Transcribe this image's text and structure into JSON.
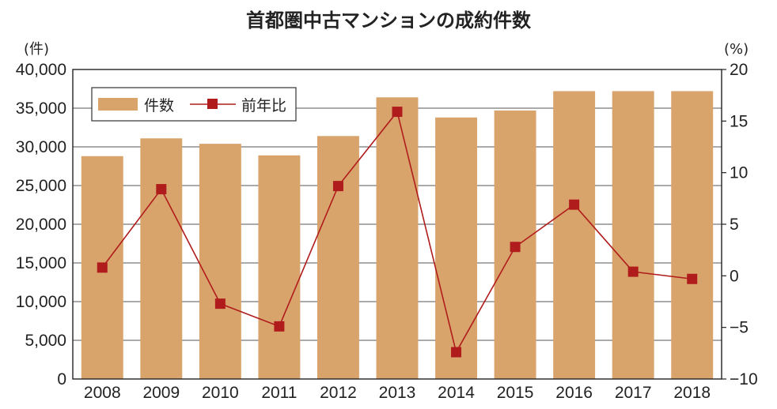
{
  "chart_data": {
    "type": "bar+line",
    "title": "首都圏中古マンションの成約件数",
    "left_axis_unit": "(件)",
    "right_axis_unit": "(%)",
    "categories": [
      "2008",
      "2009",
      "2010",
      "2011",
      "2012",
      "2013",
      "2014",
      "2015",
      "2016",
      "2017",
      "2018"
    ],
    "left_ticks": [
      "0",
      "5,000",
      "10,000",
      "15,000",
      "20,000",
      "25,000",
      "30,000",
      "35,000",
      "40,000"
    ],
    "right_ticks": [
      "−10",
      "−5",
      "0",
      "5",
      "10",
      "15",
      "20"
    ],
    "left_ylim": [
      0,
      40000
    ],
    "right_ylim": [
      -10,
      20
    ],
    "grid": true,
    "legend_position": "top-left",
    "series": [
      {
        "name": "件数",
        "type": "bar",
        "axis": "left",
        "color": "#d9a46c",
        "values": [
          28800,
          31100,
          30400,
          28900,
          31400,
          36400,
          33800,
          34700,
          37200,
          37200,
          37200
        ]
      },
      {
        "name": "前年比",
        "type": "line",
        "axis": "right",
        "color": "#b01c1c",
        "values": [
          0.8,
          8.4,
          -2.7,
          -4.9,
          8.7,
          15.9,
          -7.4,
          2.8,
          6.9,
          0.4,
          -0.3
        ]
      }
    ]
  }
}
